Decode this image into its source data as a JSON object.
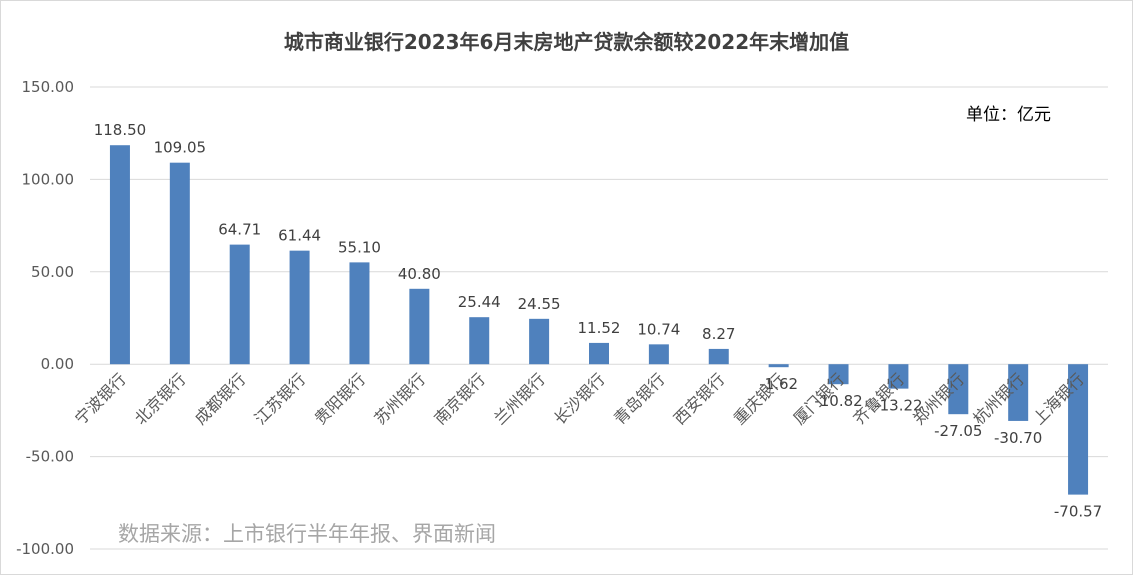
{
  "chart_data": {
    "type": "bar",
    "title": "城市商业银行2023年6月末房地产贷款余额较2022年末增加值",
    "unit_label": "单位：亿元",
    "source_note": "数据来源：上市银行半年年报、界面新闻",
    "categories": [
      "宁波银行",
      "北京银行",
      "成都银行",
      "江苏银行",
      "贵阳银行",
      "苏州银行",
      "南京银行",
      "兰州银行",
      "长沙银行",
      "青岛银行",
      "西安银行",
      "重庆银行",
      "厦门银行",
      "齐鲁银行",
      "郑州银行",
      "杭州银行",
      "上海银行"
    ],
    "values": [
      118.5,
      109.05,
      64.71,
      61.44,
      55.1,
      40.8,
      25.44,
      24.55,
      11.52,
      10.74,
      8.27,
      -1.62,
      -10.82,
      -13.22,
      -27.05,
      -30.7,
      -70.57
    ],
    "value_labels": [
      "118.50",
      "109.05",
      "64.71",
      "61.44",
      "55.10",
      "40.80",
      "25.44",
      "24.55",
      "11.52",
      "10.74",
      "8.27",
      "-1.62",
      "-10.82",
      "-13.22",
      "-27.05",
      "-30.70",
      "-70.57"
    ],
    "ylim": [
      -100,
      150
    ],
    "yticks": [
      "150.00",
      "100.00",
      "50.00",
      "0.00",
      "-50.00",
      "-100.00"
    ],
    "ytick_values": [
      150,
      100,
      50,
      0,
      -50,
      -100
    ],
    "grid": true,
    "bar_color": "#4f81bd",
    "grid_color": "#d9d9d9"
  }
}
